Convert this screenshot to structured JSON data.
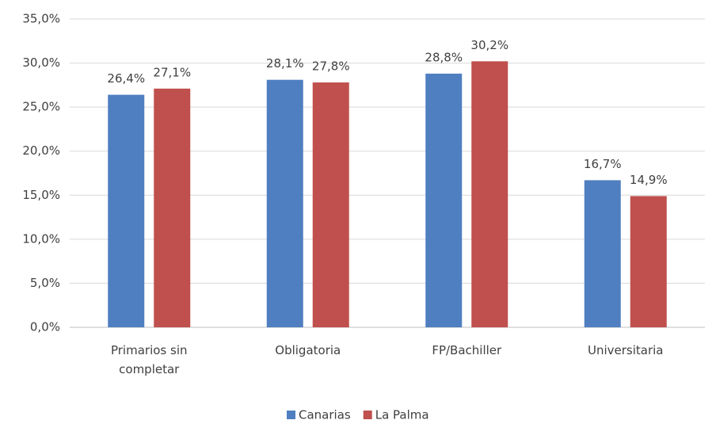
{
  "chart_data": {
    "type": "bar",
    "categories": [
      "Primarios sin completar",
      "Obligatoria",
      "FP/Bachiller",
      "Universitaria"
    ],
    "series": [
      {
        "name": "Canarias",
        "color": "#4f7fc0",
        "values": [
          26.4,
          28.1,
          28.8,
          16.7
        ],
        "value_labels": [
          "26,4%",
          "28,1%",
          "28,8%",
          "16,7%"
        ]
      },
      {
        "name": "La Palma",
        "color": "#c0504d",
        "values": [
          27.1,
          27.8,
          30.2,
          14.9
        ],
        "value_labels": [
          "27,1%",
          "27,8%",
          "30,2%",
          "14,9%"
        ]
      }
    ],
    "ylim": [
      0,
      35
    ],
    "yticks": [
      {
        "value": 0,
        "label": "0,0%"
      },
      {
        "value": 5,
        "label": "5,0%"
      },
      {
        "value": 10,
        "label": "10,0%"
      },
      {
        "value": 15,
        "label": "15,0%"
      },
      {
        "value": 20,
        "label": "20,0%"
      },
      {
        "value": 25,
        "label": "25,0%"
      },
      {
        "value": 30,
        "label": "30,0%"
      },
      {
        "value": 35,
        "label": "35,0%"
      }
    ],
    "grid": true,
    "legend": "bottom"
  }
}
